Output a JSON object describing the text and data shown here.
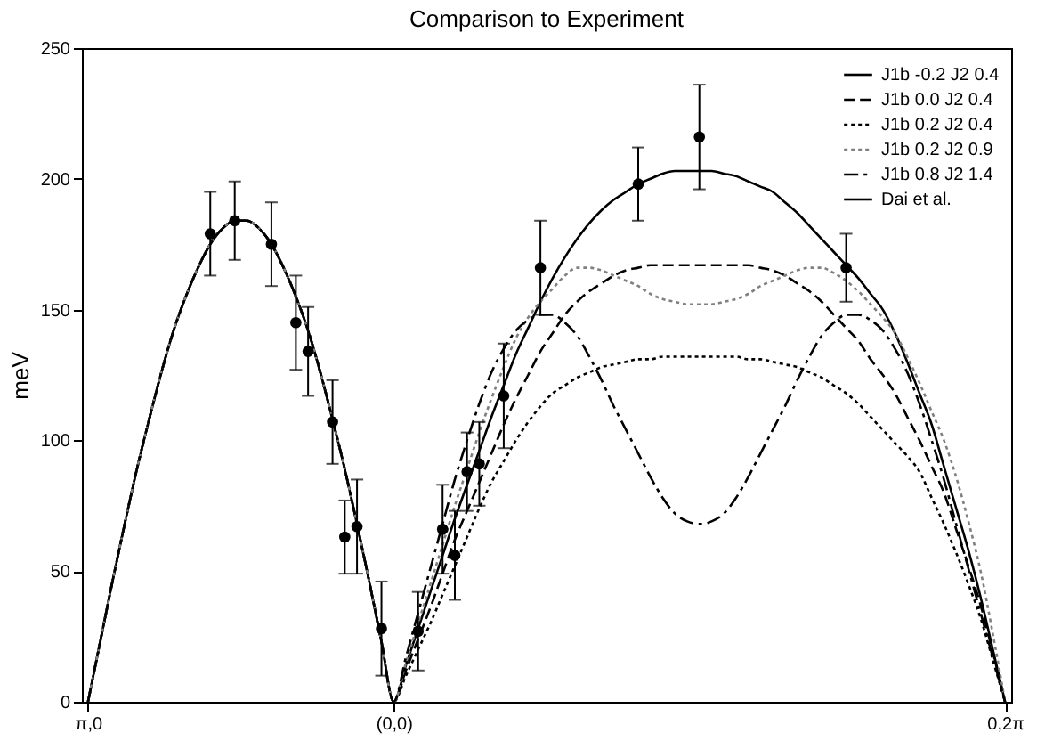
{
  "chart_data": {
    "type": "line",
    "title": "Comparison to Experiment",
    "ylabel": "meV",
    "categories": [
      "π,0",
      null,
      null,
      null,
      null,
      null,
      null,
      null,
      null,
      null,
      null,
      null,
      null,
      null,
      null,
      null,
      null,
      null,
      null,
      null,
      null,
      null,
      null,
      null,
      null,
      "(0,0)",
      null,
      null,
      null,
      null,
      null,
      null,
      null,
      null,
      null,
      null,
      null,
      null,
      null,
      null,
      null,
      null,
      null,
      null,
      null,
      null,
      null,
      null,
      null,
      null,
      null,
      null,
      null,
      null,
      null,
      null,
      null,
      null,
      null,
      null,
      null,
      null,
      null,
      null,
      null,
      null,
      null,
      null,
      null,
      null,
      null,
      null,
      null,
      null,
      null,
      "0,2π"
    ],
    "ylim": [
      0,
      250
    ],
    "yticks": [
      0,
      50,
      100,
      150,
      200,
      250
    ],
    "grid": false,
    "legend": "top right",
    "series": [
      {
        "name": "J1b -0.2 J2 0.4",
        "color": "#000000",
        "line_style": "solid",
        "values": [
          0,
          23,
          46,
          68,
          89,
          108,
          126,
          142,
          155,
          166,
          175,
          181,
          184,
          184,
          181,
          175,
          166,
          155,
          142,
          126,
          108,
          89,
          68,
          46,
          23,
          0,
          14,
          28,
          42,
          56,
          70,
          83,
          96,
          109,
          121,
          133,
          143,
          153,
          162,
          170,
          177,
          183,
          188,
          192,
          195,
          198,
          200,
          202,
          203,
          203,
          203,
          203,
          202,
          201,
          199,
          197,
          195,
          191,
          187,
          182,
          177,
          172,
          167,
          162,
          156,
          150,
          141,
          130,
          118,
          106,
          90,
          74,
          58,
          40,
          20,
          0
        ]
      },
      {
        "name": "J1b  0.0 J2 0.4",
        "color": "#000000",
        "line_style": "dashed",
        "values": [
          0,
          23,
          46,
          68,
          89,
          108,
          126,
          142,
          155,
          166,
          175,
          181,
          184,
          184,
          181,
          175,
          166,
          155,
          142,
          126,
          108,
          89,
          68,
          46,
          23,
          0,
          12,
          24,
          36,
          49,
          62,
          73,
          84,
          95,
          106,
          116,
          125,
          134,
          141,
          148,
          153,
          157,
          160,
          163,
          165,
          166,
          167,
          167,
          167,
          167,
          167,
          167,
          167,
          167,
          167,
          166,
          165,
          163,
          160,
          157,
          153,
          148,
          143,
          138,
          131,
          125,
          118,
          109,
          100,
          90,
          80,
          66,
          52,
          37,
          19,
          0
        ]
      },
      {
        "name": "J1b  0.2 J2 0.4",
        "color": "#000000",
        "line_style": "dotted",
        "values": [
          0,
          23,
          46,
          68,
          89,
          108,
          126,
          142,
          155,
          166,
          175,
          181,
          184,
          184,
          181,
          175,
          166,
          155,
          142,
          126,
          108,
          89,
          68,
          46,
          23,
          0,
          10,
          20,
          30,
          41,
          52,
          63,
          74,
          84,
          92,
          100,
          107,
          113,
          118,
          121,
          124,
          126,
          128,
          129,
          130,
          131,
          131,
          132,
          132,
          132,
          132,
          132,
          132,
          132,
          131,
          131,
          130,
          129,
          128,
          126,
          124,
          121,
          118,
          114,
          109,
          104,
          99,
          94,
          88,
          78,
          68,
          57,
          45,
          32,
          16,
          0
        ]
      },
      {
        "name": "J1b  0.2 J2 0.9",
        "color": "#808080",
        "line_style": "dotted",
        "values": [
          0,
          23,
          46,
          68,
          89,
          108,
          126,
          142,
          155,
          166,
          175,
          181,
          184,
          184,
          181,
          175,
          166,
          155,
          142,
          126,
          108,
          89,
          68,
          46,
          23,
          0,
          15,
          30,
          45,
          60,
          75,
          89,
          103,
          116,
          128,
          139,
          147,
          153,
          158,
          163,
          166,
          166,
          165,
          163,
          161,
          159,
          156,
          154,
          153,
          152,
          152,
          152,
          153,
          154,
          156,
          159,
          161,
          163,
          165,
          166,
          166,
          164,
          161,
          157,
          152,
          147,
          141,
          132,
          122,
          111,
          100,
          86,
          69,
          50,
          26,
          0
        ]
      },
      {
        "name": "J1b  0.8 J2 1.4",
        "color": "#000000",
        "line_style": "dashdot",
        "values": [
          0,
          23,
          46,
          68,
          89,
          108,
          126,
          142,
          155,
          166,
          175,
          181,
          184,
          184,
          181,
          175,
          166,
          155,
          142,
          126,
          108,
          89,
          68,
          46,
          23,
          0,
          17,
          34,
          51,
          68,
          85,
          100,
          114,
          126,
          135,
          142,
          146,
          148,
          148,
          145,
          140,
          132,
          123,
          113,
          104,
          95,
          86,
          78,
          72,
          69,
          68,
          69,
          72,
          78,
          86,
          95,
          104,
          113,
          123,
          132,
          140,
          145,
          148,
          148,
          146,
          142,
          135,
          126,
          114,
          100,
          85,
          68,
          51,
          34,
          17,
          0
        ]
      },
      {
        "name": "Dai et al.",
        "color": "#000000",
        "type": "scatter",
        "marker": "circle",
        "values": [
          null,
          null,
          null,
          null,
          null,
          null,
          null,
          null,
          null,
          null,
          179,
          null,
          184,
          null,
          null,
          175,
          null,
          145,
          134,
          null,
          107,
          63,
          67,
          null,
          28,
          null,
          null,
          27,
          null,
          66,
          56,
          88,
          91,
          null,
          117,
          null,
          null,
          166,
          null,
          null,
          null,
          null,
          null,
          null,
          null,
          198,
          null,
          null,
          null,
          null,
          216,
          null,
          null,
          null,
          null,
          null,
          null,
          null,
          null,
          null,
          null,
          null,
          166,
          null,
          null,
          null,
          null,
          null,
          null,
          null,
          null,
          null,
          null,
          null,
          null,
          null
        ],
        "errors": [
          null,
          null,
          null,
          null,
          null,
          null,
          null,
          null,
          null,
          null,
          16,
          null,
          15,
          null,
          null,
          16,
          null,
          18,
          17,
          null,
          16,
          14,
          18,
          null,
          18,
          null,
          null,
          15,
          null,
          17,
          17,
          15,
          16,
          null,
          20,
          null,
          null,
          18,
          null,
          null,
          null,
          null,
          null,
          null,
          null,
          14,
          null,
          null,
          null,
          null,
          20,
          null,
          null,
          null,
          null,
          null,
          null,
          null,
          null,
          null,
          null,
          null,
          13,
          null,
          null,
          null,
          null,
          null,
          null,
          null,
          null,
          null,
          null,
          null,
          null,
          null
        ]
      }
    ]
  }
}
